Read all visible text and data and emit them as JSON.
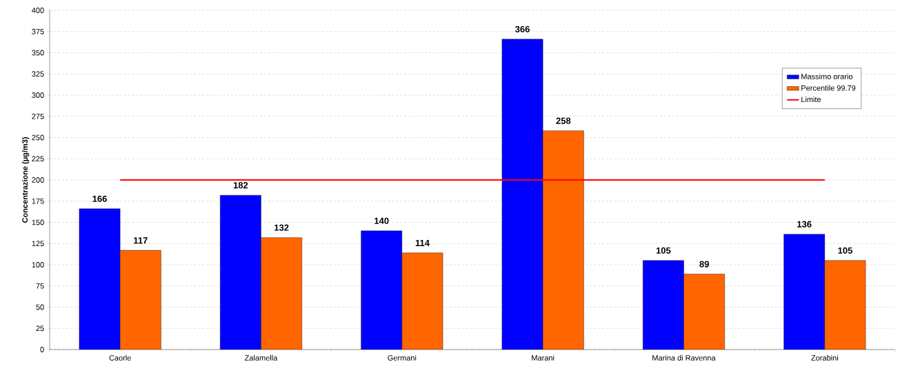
{
  "chart_data": {
    "type": "bar",
    "ylabel": "Concentrazione (µg/m3)",
    "categories": [
      "Caorle",
      "Zalamella",
      "Germani",
      "Marani",
      "Marina di Ravenna",
      "Zorabini"
    ],
    "series": [
      {
        "name": "Massimo orario",
        "color": "#0000ff",
        "values": [
          166,
          182,
          140,
          366,
          105,
          136
        ],
        "value_labels": [
          "166",
          "182",
          "140",
          "366",
          "105",
          "136"
        ]
      },
      {
        "name": "Percentile 99.79",
        "color": "#ff6600",
        "values": [
          117,
          132,
          114,
          258,
          89,
          105
        ],
        "value_labels": [
          "117",
          "132",
          "114",
          "258",
          "89",
          "105"
        ]
      }
    ],
    "ref_lines": [
      {
        "axis": "y",
        "value": 200,
        "label": "Limite",
        "color": "#ff0000"
      }
    ],
    "ylim": [
      0,
      400
    ],
    "yticks": [
      0,
      25,
      50,
      75,
      100,
      125,
      150,
      175,
      200,
      225,
      250,
      275,
      300,
      325,
      350,
      375,
      400
    ],
    "grid": "y",
    "legend": "right"
  }
}
